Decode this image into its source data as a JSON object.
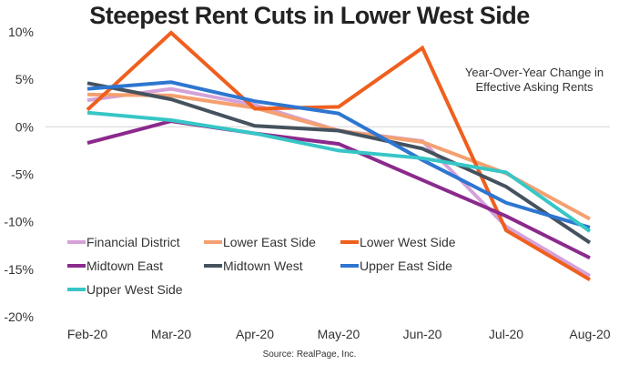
{
  "chart_data": {
    "type": "line",
    "title": "Steepest Rent Cuts in Lower West Side",
    "annotation": [
      "Year-Over-Year Change in",
      "Effective Asking Rents"
    ],
    "source": "Source: RealPage, Inc.",
    "xlabel": "",
    "ylabel": "",
    "categories": [
      "Feb-20",
      "Mar-20",
      "Apr-20",
      "May-20",
      "Jun-20",
      "Jul-20",
      "Aug-20"
    ],
    "ylim": [
      -20,
      10
    ],
    "yticks": [
      10,
      5,
      0,
      -5,
      -10,
      -15,
      -20
    ],
    "ytick_labels": [
      "10%",
      "5%",
      "0%",
      "-5%",
      "-10%",
      "-15%",
      "-20%"
    ],
    "grid": "zero-line only",
    "legend_position": "bottom-left inside plot",
    "series": [
      {
        "name": "Financial District",
        "color": "#d4a2d8",
        "values": [
          2.8,
          4.0,
          2.3,
          -0.4,
          -1.5,
          -10.5,
          -15.7
        ]
      },
      {
        "name": "Lower East Side",
        "color": "#f4a070",
        "values": [
          3.4,
          3.3,
          2.0,
          -0.4,
          -1.6,
          -4.9,
          -9.7
        ]
      },
      {
        "name": "Lower West Side",
        "color": "#ef5f1e",
        "values": [
          1.8,
          9.9,
          1.9,
          2.1,
          8.3,
          -10.9,
          -16.1
        ]
      },
      {
        "name": "Midtown East",
        "color": "#8b2a8c",
        "values": [
          -1.7,
          0.6,
          -0.7,
          -1.8,
          -5.6,
          -9.4,
          -13.8
        ]
      },
      {
        "name": "Midtown West",
        "color": "#45525e",
        "values": [
          4.6,
          2.9,
          0.1,
          -0.4,
          -2.3,
          -6.3,
          -12.2
        ]
      },
      {
        "name": "Upper East Side",
        "color": "#2e76d0",
        "values": [
          4.0,
          4.7,
          2.7,
          1.4,
          -3.5,
          -8.0,
          -10.6
        ]
      },
      {
        "name": "Upper West Side",
        "color": "#37c6c6",
        "values": [
          1.5,
          0.7,
          -0.7,
          -2.5,
          -3.3,
          -4.8,
          -11.0
        ]
      }
    ]
  }
}
